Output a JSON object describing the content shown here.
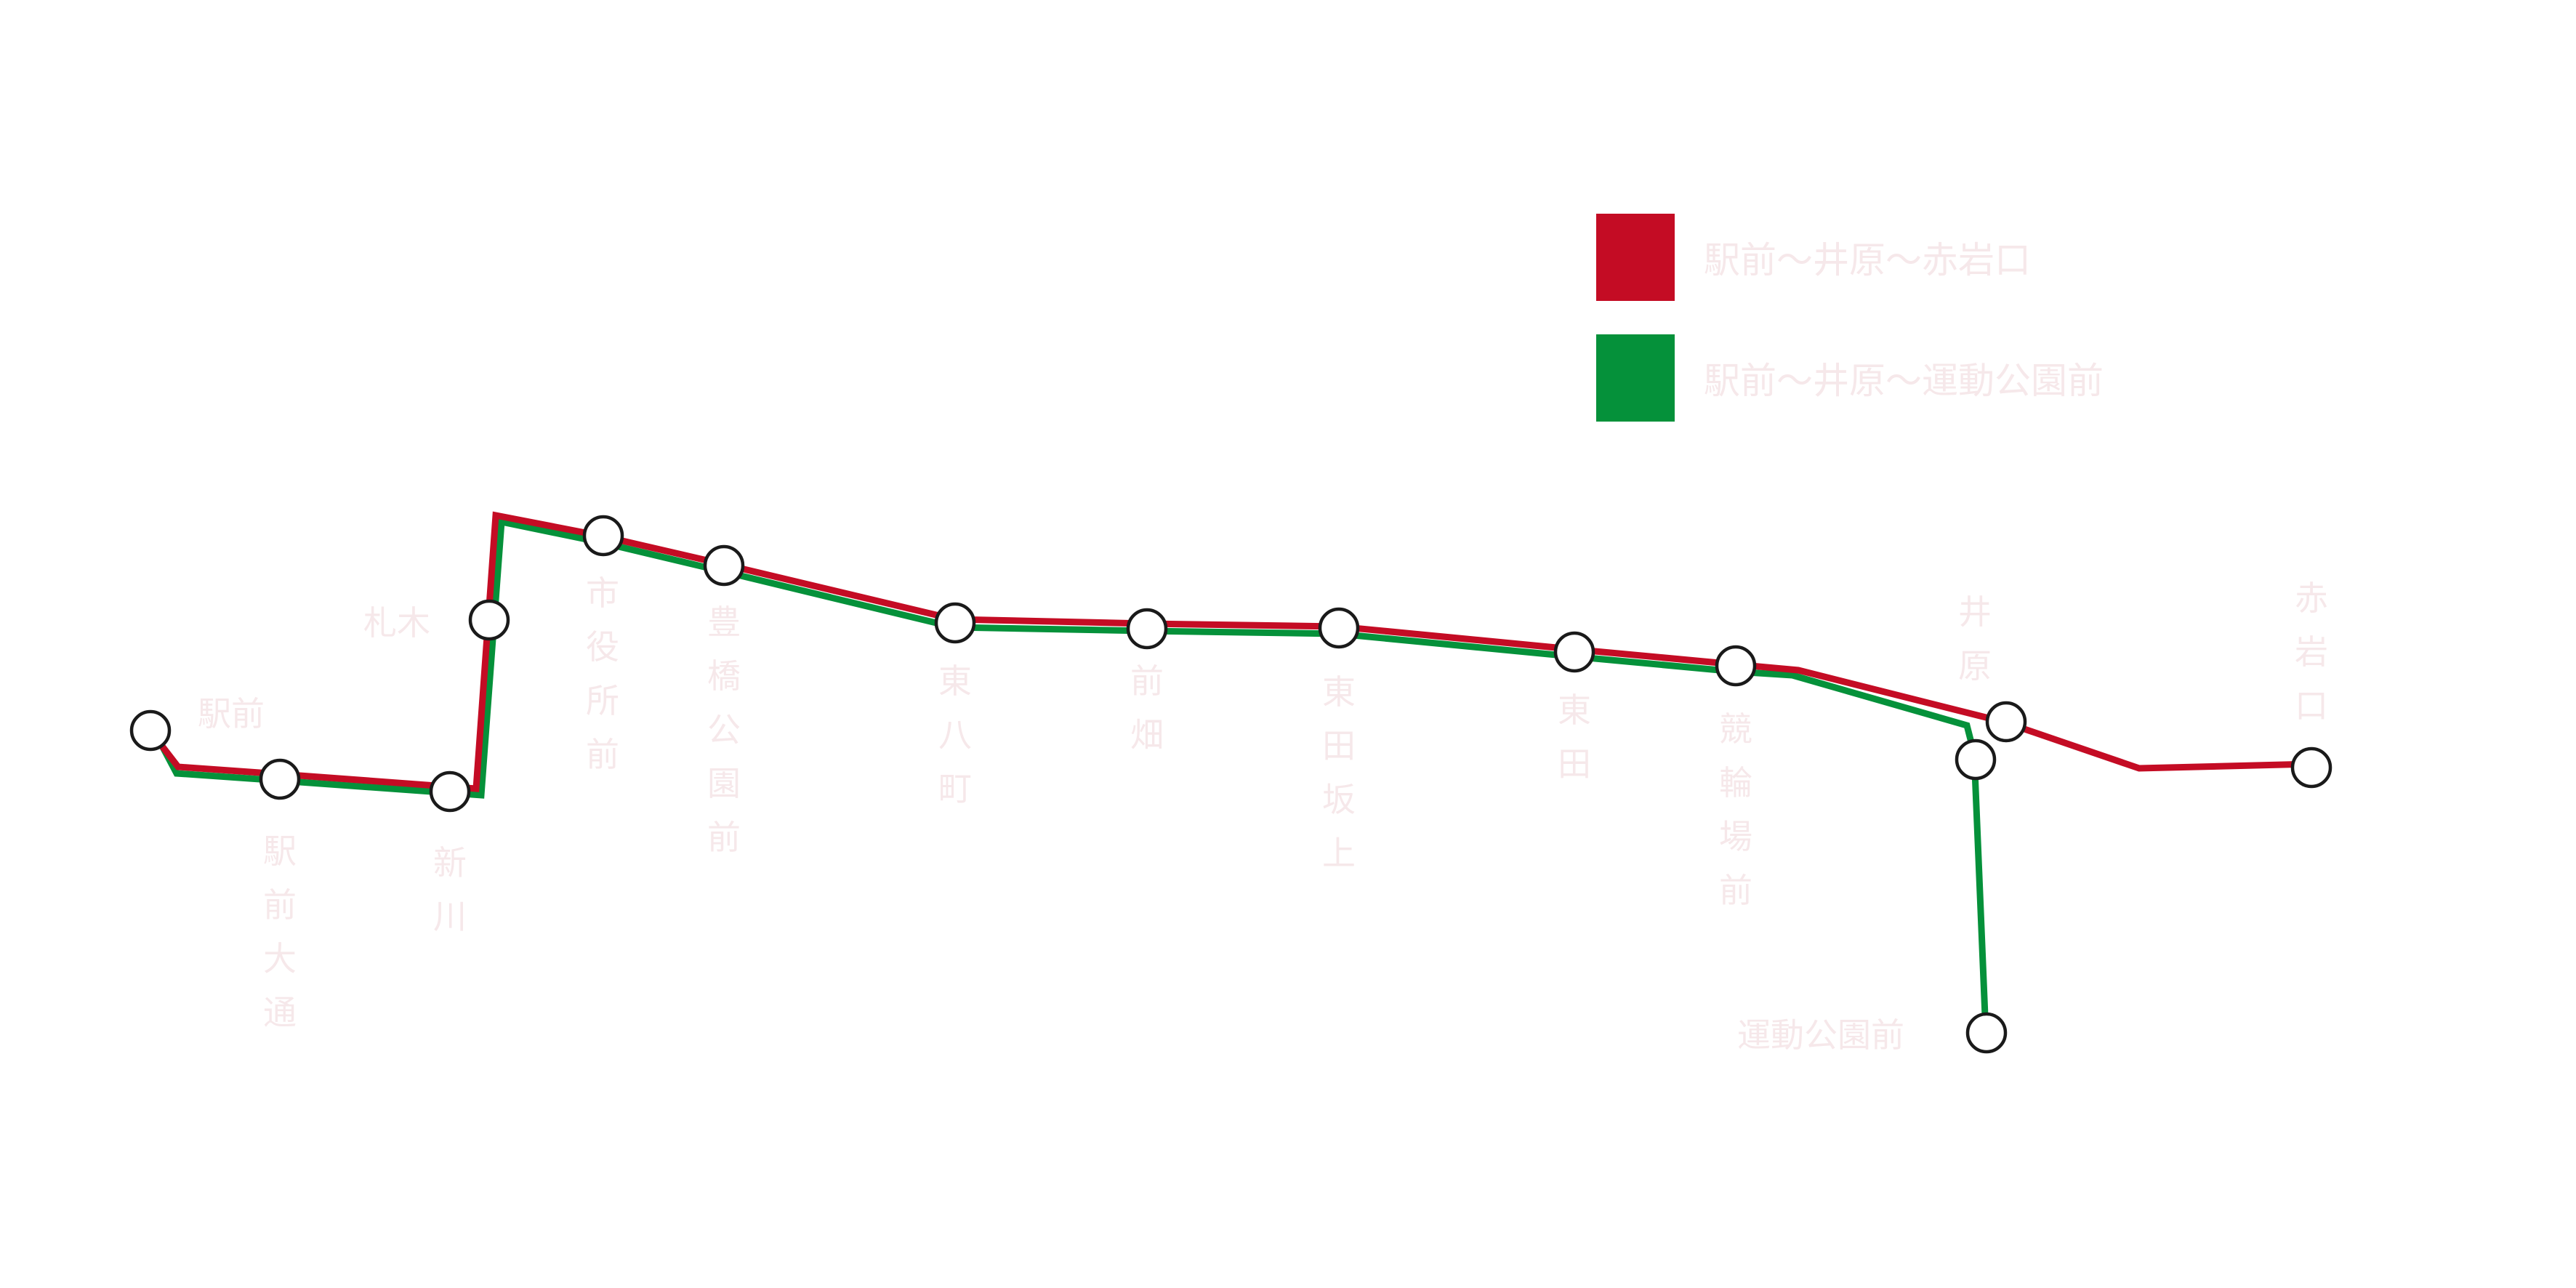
{
  "colors": {
    "route_red": "#c40c24",
    "route_green": "#05913a",
    "label_text": "#f6e8ea",
    "station_outline": "#1a1a1a",
    "background": "#ffffff"
  },
  "legend": [
    {
      "label": "駅前～井原～赤岩口",
      "color": "#c40c24"
    },
    {
      "label": "駅前～井原～運動公園前",
      "color": "#05913a"
    }
  ],
  "stations": [
    {
      "name": "駅前"
    },
    {
      "name": "駅前大通"
    },
    {
      "name": "新川"
    },
    {
      "name": "札木"
    },
    {
      "name": "市役所前"
    },
    {
      "name": "豊橋公園前"
    },
    {
      "name": "東八町"
    },
    {
      "name": "前畑"
    },
    {
      "name": "東田坂上"
    },
    {
      "name": "東田"
    },
    {
      "name": "競輪場前"
    },
    {
      "name": "井原"
    },
    {
      "name": "赤岩口"
    },
    {
      "name": "運動公園前"
    }
  ]
}
